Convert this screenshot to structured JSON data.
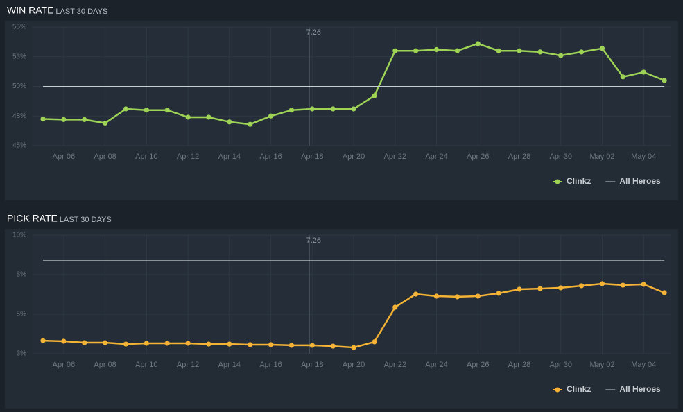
{
  "chart_data": [
    {
      "type": "line",
      "title": "WIN RATE",
      "subtitle": "LAST 30 DAYS",
      "categories": [
        null,
        "Apr 06",
        null,
        "Apr 08",
        null,
        "Apr 10",
        null,
        "Apr 12",
        null,
        "Apr 14",
        null,
        "Apr 16",
        null,
        "Apr 18",
        null,
        "Apr 20",
        null,
        "Apr 22",
        null,
        "Apr 24",
        null,
        "Apr 26",
        null,
        "Apr 28",
        null,
        "Apr 30",
        null,
        "May 02",
        null,
        "May 04",
        null
      ],
      "series": [
        {
          "name": "Clinkz",
          "color": "#9fd356",
          "markers": true,
          "values": [
            47.25,
            47.2,
            47.2,
            46.9,
            48.1,
            48.0,
            48.0,
            47.4,
            47.4,
            47.0,
            46.8,
            47.5,
            48.0,
            48.1,
            48.1,
            48.1,
            49.2,
            53.0,
            53.0,
            53.1,
            53.0,
            53.6,
            53.0,
            53.0,
            52.9,
            52.6,
            52.9,
            53.2,
            50.8,
            51.2,
            50.5
          ]
        },
        {
          "name": "All Heroes",
          "color": "#c8cdd2",
          "markers": false,
          "values": [
            50,
            50,
            50,
            50,
            50,
            50,
            50,
            50,
            50,
            50,
            50,
            50,
            50,
            50,
            50,
            50,
            50,
            50,
            50,
            50,
            50,
            50,
            50,
            50,
            50,
            50,
            50,
            50,
            50,
            50,
            50
          ]
        }
      ],
      "ylim": [
        45,
        55
      ],
      "yticks": [
        {
          "value": 45,
          "label": "45%"
        },
        {
          "value": 47.5,
          "label": "48%"
        },
        {
          "value": 50,
          "label": "50%"
        },
        {
          "value": 52.5,
          "label": "53%"
        },
        {
          "value": 55,
          "label": "55%"
        }
      ],
      "annotation": {
        "label": "7.26",
        "x": "Apr 18"
      },
      "grid": true,
      "legend": "bottom-right"
    },
    {
      "type": "line",
      "title": "PICK RATE",
      "subtitle": "LAST 30 DAYS",
      "categories": [
        null,
        "Apr 06",
        null,
        "Apr 08",
        null,
        "Apr 10",
        null,
        "Apr 12",
        null,
        "Apr 14",
        null,
        "Apr 16",
        null,
        "Apr 18",
        null,
        "Apr 20",
        null,
        "Apr 22",
        null,
        "Apr 24",
        null,
        "Apr 26",
        null,
        "Apr 28",
        null,
        "Apr 30",
        null,
        "May 02",
        null,
        "May 04",
        null
      ],
      "series": [
        {
          "name": "Clinkz",
          "color": "#f5b335",
          "markers": true,
          "values": [
            3.33,
            3.29,
            3.2,
            3.2,
            3.11,
            3.16,
            3.16,
            3.16,
            3.11,
            3.11,
            3.07,
            3.07,
            3.03,
            3.03,
            2.98,
            2.89,
            3.25,
            5.44,
            6.27,
            6.14,
            6.1,
            6.14,
            6.32,
            6.58,
            6.62,
            6.67,
            6.8,
            6.93,
            6.84,
            6.89,
            6.36
          ]
        },
        {
          "name": "All Heroes",
          "color": "#c8cdd2",
          "markers": false,
          "values": [
            8.38,
            8.38,
            8.38,
            8.38,
            8.38,
            8.38,
            8.38,
            8.38,
            8.38,
            8.38,
            8.38,
            8.38,
            8.38,
            8.38,
            8.38,
            8.38,
            8.38,
            8.38,
            8.38,
            8.38,
            8.38,
            8.38,
            8.38,
            8.38,
            8.38,
            8.38,
            8.38,
            8.38,
            8.38,
            8.38,
            8.38
          ]
        }
      ],
      "ylim": [
        2.5,
        10
      ],
      "yticks": [
        {
          "value": 2.5,
          "label": "3%"
        },
        {
          "value": 5,
          "label": "5%"
        },
        {
          "value": 7.5,
          "label": "8%"
        },
        {
          "value": 10,
          "label": "10%"
        }
      ],
      "annotation": {
        "label": "7.26",
        "x": "Apr 18"
      },
      "grid": true,
      "legend": "bottom-right"
    }
  ]
}
